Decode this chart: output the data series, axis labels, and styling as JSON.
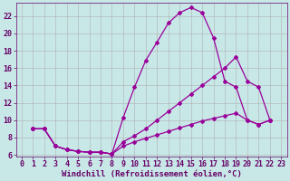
{
  "xlabel": "Windchill (Refroidissement éolien,°C)",
  "background_color": "#c8e8e8",
  "line_color": "#990099",
  "xlim": [
    -0.5,
    23.5
  ],
  "ylim": [
    5.8,
    23.5
  ],
  "yticks": [
    6,
    8,
    10,
    12,
    14,
    16,
    18,
    20,
    22
  ],
  "xticks": [
    0,
    1,
    2,
    3,
    4,
    5,
    6,
    7,
    8,
    9,
    10,
    11,
    12,
    13,
    14,
    15,
    16,
    17,
    18,
    19,
    20,
    21,
    22,
    23
  ],
  "line1_x": [
    1,
    2,
    3,
    4,
    5,
    6,
    7,
    8,
    9,
    10,
    11,
    12,
    13,
    14,
    15,
    16,
    17,
    18,
    19,
    20,
    21,
    22
  ],
  "line1_y": [
    9.0,
    9.0,
    7.0,
    6.6,
    6.4,
    6.3,
    6.3,
    6.1,
    10.3,
    13.8,
    16.9,
    19.0,
    21.2,
    22.4,
    23.0,
    22.4,
    19.5,
    14.5,
    13.8,
    10.0,
    9.5,
    10.0
  ],
  "line2_x": [
    1,
    2,
    3,
    4,
    5,
    6,
    7,
    8,
    9,
    10,
    11,
    12,
    13,
    14,
    15,
    16,
    17,
    18,
    19,
    20,
    21,
    22
  ],
  "line2_y": [
    9.0,
    9.0,
    7.0,
    6.6,
    6.4,
    6.3,
    6.3,
    6.1,
    7.5,
    8.2,
    9.0,
    10.0,
    11.0,
    12.0,
    13.0,
    14.0,
    15.0,
    16.0,
    17.3,
    14.5,
    13.8,
    10.0
  ],
  "line3_x": [
    1,
    2,
    3,
    4,
    5,
    6,
    7,
    8,
    9,
    10,
    11,
    12,
    13,
    14,
    15,
    16,
    17,
    18,
    19,
    20,
    21,
    22
  ],
  "line3_y": [
    9.0,
    9.0,
    7.0,
    6.6,
    6.4,
    6.3,
    6.3,
    6.1,
    7.0,
    7.5,
    7.9,
    8.3,
    8.7,
    9.1,
    9.5,
    9.9,
    10.2,
    10.5,
    10.8,
    10.0,
    9.5,
    10.0
  ],
  "grid_color": "#b0b0b0",
  "marker": "D",
  "markersize": 2.0,
  "linewidth": 0.9,
  "font_color": "#660066",
  "xlabel_fontsize": 6.5,
  "tick_fontsize": 6.0
}
